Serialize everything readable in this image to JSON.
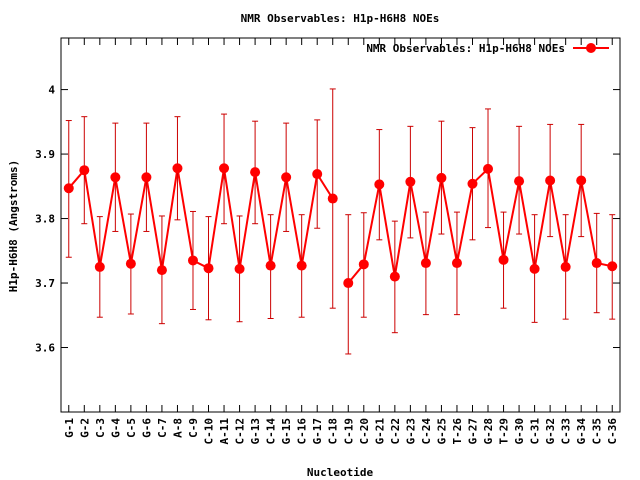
{
  "chart_data": {
    "type": "line",
    "title": "NMR Observables: H1p-H6H8 NOEs",
    "xlabel": "Nucleotide",
    "ylabel": "H1p-H6H8 (Angstroms)",
    "ylim": [
      3.5,
      4.08
    ],
    "yticks": [
      3.6,
      3.7,
      3.8,
      3.9,
      4
    ],
    "legend_position": "top-right",
    "grid": false,
    "colors": {
      "series": "#ff0000",
      "errorbar": "#cc0000"
    },
    "categories": [
      "G-1",
      "G-2",
      "C-3",
      "G-4",
      "C-5",
      "G-6",
      "C-7",
      "A-8",
      "C-9",
      "C-10",
      "A-11",
      "C-12",
      "G-13",
      "C-14",
      "G-15",
      "C-16",
      "G-17",
      "C-18",
      "C-19",
      "C-20",
      "G-21",
      "C-22",
      "G-23",
      "C-24",
      "G-25",
      "T-26",
      "G-27",
      "G-28",
      "T-29",
      "G-30",
      "C-31",
      "G-32",
      "C-33",
      "G-34",
      "C-35",
      "C-36"
    ],
    "series": [
      {
        "name": "NMR Observables: H1p-H6H8 NOEs",
        "segments": [
          {
            "x": [
              1,
              2,
              3,
              4,
              5,
              6,
              7,
              8,
              9,
              10,
              11,
              12,
              13,
              14,
              15,
              16,
              17,
              18
            ],
            "values": [
              3.847,
              3.875,
              3.725,
              3.864,
              3.73,
              3.864,
              3.72,
              3.878,
              3.735,
              3.723,
              3.878,
              3.722,
              3.872,
              3.727,
              3.864,
              3.727,
              3.869,
              3.831
            ],
            "errors": [
              [
                3.74,
                3.952
              ],
              [
                3.792,
                3.958
              ],
              [
                3.647,
                3.803
              ],
              [
                3.78,
                3.948
              ],
              [
                3.652,
                3.807
              ],
              [
                3.78,
                3.948
              ],
              [
                3.637,
                3.804
              ],
              [
                3.798,
                3.958
              ],
              [
                3.659,
                3.811
              ],
              [
                3.643,
                3.803
              ],
              [
                3.792,
                3.962
              ],
              [
                3.64,
                3.804
              ],
              [
                3.792,
                3.951
              ],
              [
                3.645,
                3.806
              ],
              [
                3.78,
                3.948
              ],
              [
                3.647,
                3.806
              ],
              [
                3.785,
                3.953
              ],
              [
                3.661,
                4.001
              ]
            ]
          },
          {
            "x": [
              19,
              20,
              21,
              22,
              23,
              24,
              25,
              26,
              27,
              28,
              29,
              30,
              31,
              32,
              33,
              34,
              35,
              36
            ],
            "values": [
              3.7,
              3.729,
              3.853,
              3.71,
              3.857,
              3.731,
              3.863,
              3.731,
              3.854,
              3.877,
              3.736,
              3.858,
              3.722,
              3.859,
              3.725,
              3.859,
              3.731,
              3.726
            ],
            "errors": [
              [
                3.59,
                3.806
              ],
              [
                3.647,
                3.809
              ],
              [
                3.767,
                3.938
              ],
              [
                3.623,
                3.796
              ],
              [
                3.77,
                3.943
              ],
              [
                3.651,
                3.81
              ],
              [
                3.776,
                3.951
              ],
              [
                3.651,
                3.81
              ],
              [
                3.767,
                3.941
              ],
              [
                3.786,
                3.97
              ],
              [
                3.661,
                3.81
              ],
              [
                3.776,
                3.943
              ],
              [
                3.639,
                3.806
              ],
              [
                3.772,
                3.946
              ],
              [
                3.644,
                3.806
              ],
              [
                3.772,
                3.946
              ],
              [
                3.654,
                3.808
              ],
              [
                3.644,
                3.806
              ]
            ]
          }
        ]
      }
    ]
  }
}
